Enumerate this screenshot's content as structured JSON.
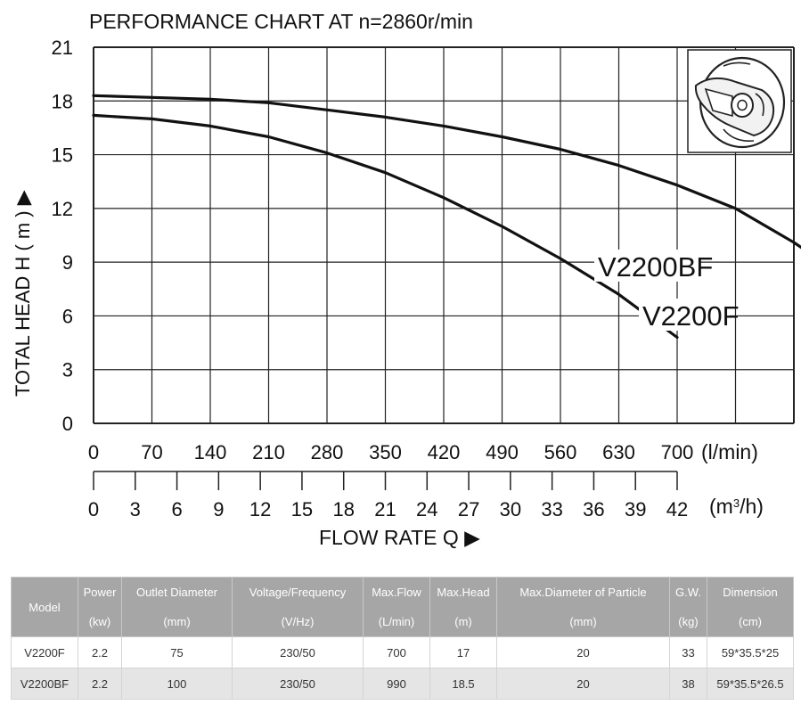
{
  "chart_data": {
    "type": "line",
    "title": "PERFORMANCE  CHART  AT  n=2860r/min",
    "ylabel": "TOTAL HEAD  H ( m ) ▶",
    "xlabel": "FLOW  RATE  Q  ▶",
    "x_unit_primary": "(l/min)",
    "x_unit_secondary": "(m³/h)",
    "ylim": [
      0,
      21
    ],
    "yticks": [
      "0",
      "3",
      "6",
      "9",
      "12",
      "15",
      "18",
      "21"
    ],
    "xlim": [
      0,
      840
    ],
    "xticks_lmin": [
      "0",
      "70",
      "140",
      "210",
      "280",
      "350",
      "420",
      "490",
      "560",
      "630",
      "700"
    ],
    "xticks_m3h": [
      "0",
      "3",
      "6",
      "9",
      "12",
      "15",
      "18",
      "21",
      "24",
      "27",
      "30",
      "33",
      "36",
      "39",
      "42"
    ],
    "grid": true,
    "series": [
      {
        "name": "V2200BF",
        "x": [
          0,
          70,
          140,
          210,
          280,
          350,
          420,
          490,
          560,
          630,
          700,
          770,
          840,
          875
        ],
        "y": [
          18.3,
          18.2,
          18.1,
          17.9,
          17.5,
          17.1,
          16.6,
          16.0,
          15.3,
          14.4,
          13.3,
          12.0,
          10.1,
          9.0
        ]
      },
      {
        "name": "V2200F",
        "x": [
          0,
          70,
          140,
          210,
          280,
          350,
          420,
          490,
          560,
          630,
          700
        ],
        "y": [
          17.2,
          17.0,
          16.6,
          16.0,
          15.1,
          14.0,
          12.6,
          11.0,
          9.2,
          7.2,
          4.8
        ]
      }
    ]
  },
  "table": {
    "headers": [
      [
        "Model"
      ],
      [
        "Power",
        "(kw)"
      ],
      [
        "Outlet Diameter",
        "(mm)"
      ],
      [
        "Voltage/Frequency",
        "(V/Hz)"
      ],
      [
        "Max.Flow",
        "(L/min)"
      ],
      [
        "Max.Head",
        "(m)"
      ],
      [
        "Max.Diameter of Particle",
        "(mm)"
      ],
      [
        "G.W.",
        "(kg)"
      ],
      [
        "Dimension",
        "(cm)"
      ]
    ],
    "rows": [
      [
        "V2200F",
        "2.2",
        "75",
        "230/50",
        "700",
        "17",
        "20",
        "33",
        "59*35.5*25"
      ],
      [
        "V2200BF",
        "2.2",
        "100",
        "230/50",
        "990",
        "18.5",
        "20",
        "38",
        "59*35.5*26.5"
      ]
    ]
  },
  "colors": {
    "header_bg": "#a6a6a6",
    "alt_row_bg": "#e5e5e5",
    "curve": "#111111"
  },
  "icons": {
    "pump": "pump-impeller-icon"
  }
}
